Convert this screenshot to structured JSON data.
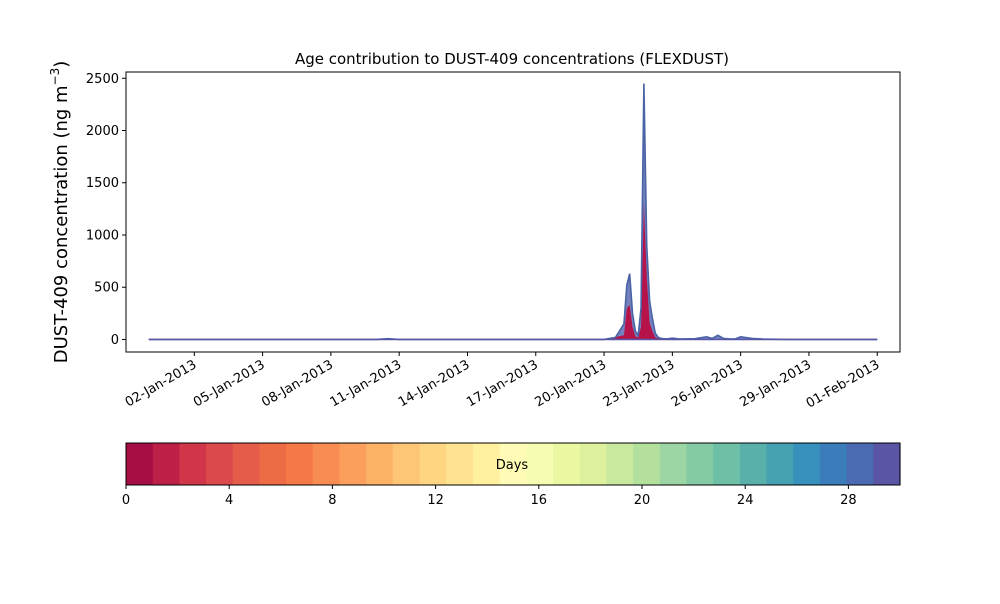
{
  "chart_data": {
    "type": "area",
    "title": "Age contribution to DUST-409 concentrations (FLEXDUST)",
    "ylabel": "DUST-409 concentration (ng m⁻³)",
    "ylabel_main": "DUST-409 concentration (ng m",
    "ylabel_exp": "−3",
    "ylabel_close": ")",
    "xlabel": "",
    "x_start": "2012-12-31",
    "x_end": "2013-02-01",
    "xlim": [
      "2012-12-30",
      "2013-02-02"
    ],
    "ylim": [
      -120,
      2560
    ],
    "xtick_labels": [
      "02-Jan-2013",
      "05-Jan-2013",
      "08-Jan-2013",
      "11-Jan-2013",
      "14-Jan-2013",
      "17-Jan-2013",
      "20-Jan-2013",
      "23-Jan-2013",
      "26-Jan-2013",
      "29-Jan-2013",
      "01-Feb-2013"
    ],
    "xtick_dates": [
      "2013-01-02",
      "2013-01-05",
      "2013-01-08",
      "2013-01-11",
      "2013-01-14",
      "2013-01-17",
      "2013-01-20",
      "2013-01-23",
      "2013-01-26",
      "2013-01-29",
      "2013-02-01"
    ],
    "ytick_values": [
      0,
      500,
      1000,
      1500,
      2000,
      2500
    ],
    "ytick_labels": [
      "0",
      "500",
      "1000",
      "1500",
      "2000",
      "2500"
    ],
    "total": {
      "x": [
        "2012-12-31T00:00",
        "2013-01-10T00:00",
        "2013-01-10T12:00",
        "2013-01-11T00:00",
        "2013-01-13T00:00",
        "2013-01-20T00:00",
        "2013-01-20T12:00",
        "2013-01-20T21:00",
        "2013-01-21T00:00",
        "2013-01-21T03:00",
        "2013-01-21T06:00",
        "2013-01-21T09:00",
        "2013-01-21T12:00",
        "2013-01-21T15:00",
        "2013-01-21T18:00",
        "2013-01-21T21:00",
        "2013-01-22T00:00",
        "2013-01-22T03:00",
        "2013-01-22T06:00",
        "2013-01-22T09:00",
        "2013-01-22T12:00",
        "2013-01-22T18:00",
        "2013-01-23T00:00",
        "2013-01-23T06:00",
        "2013-01-23T12:00",
        "2013-01-24T00:00",
        "2013-01-24T12:00",
        "2013-01-24T18:00",
        "2013-01-25T00:00",
        "2013-01-25T06:00",
        "2013-01-25T12:00",
        "2013-01-25T18:00",
        "2013-01-26T00:00",
        "2013-01-26T12:00",
        "2013-01-27T00:00",
        "2013-01-28T00:00",
        "2013-02-01T00:00"
      ],
      "y": [
        0,
        0,
        8,
        0,
        0,
        0,
        20,
        150,
        520,
        630,
        250,
        80,
        40,
        300,
        2450,
        900,
        370,
        200,
        60,
        20,
        10,
        5,
        12,
        6,
        5,
        8,
        25,
        10,
        40,
        10,
        5,
        5,
        25,
        10,
        4,
        0,
        0
      ]
    },
    "young": {
      "x": [
        "2012-12-31T00:00",
        "2013-01-20T00:00",
        "2013-01-20T21:00",
        "2013-01-21T00:00",
        "2013-01-21T03:00",
        "2013-01-21T06:00",
        "2013-01-21T09:00",
        "2013-01-21T12:00",
        "2013-01-21T15:00",
        "2013-01-21T18:00",
        "2013-01-21T21:00",
        "2013-01-22T00:00",
        "2013-01-22T03:00",
        "2013-01-22T06:00",
        "2013-01-22T12:00",
        "2013-02-01T00:00"
      ],
      "y": [
        0,
        0,
        40,
        300,
        330,
        120,
        30,
        20,
        120,
        1300,
        600,
        160,
        80,
        20,
        3,
        0
      ]
    },
    "colorbar": {
      "label": "Days",
      "range": [
        0,
        30
      ],
      "tick_values": [
        0,
        4,
        8,
        12,
        16,
        20,
        24,
        28
      ],
      "tick_labels": [
        "0",
        "4",
        "8",
        "12",
        "16",
        "20",
        "24",
        "28"
      ],
      "colors": [
        "#a50d45",
        "#bc2047",
        "#d0354a",
        "#dc494c",
        "#e55d4a",
        "#ee6c45",
        "#f57947",
        "#f88c53",
        "#fba05c",
        "#fdb366",
        "#fdc574",
        "#fed581",
        "#fee390",
        "#fff0a0",
        "#fffbb6",
        "#f7fcb3",
        "#ecf7a2",
        "#ddf09b",
        "#c9e99e",
        "#b4e09e",
        "#9cd6a4",
        "#84cba4",
        "#6dc0a6",
        "#59b0aa",
        "#45a0b2",
        "#3890bd",
        "#3b7dbb",
        "#4a6bb1",
        "#5a55a5"
      ]
    },
    "series_colors": {
      "total_line": "#4a62a6",
      "total_fill": "#5b6cb0",
      "young_fill": "#b5134a",
      "zero_line": "#5a55a5"
    },
    "grid": false
  }
}
